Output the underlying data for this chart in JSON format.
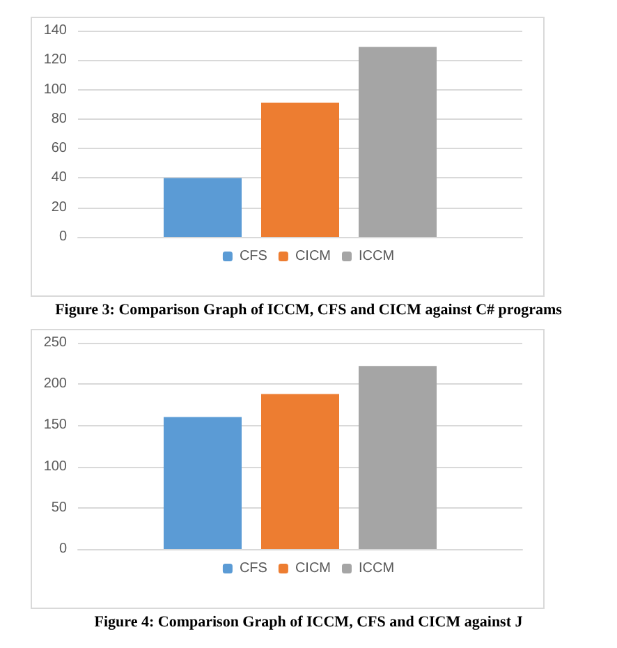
{
  "chart_data": [
    {
      "type": "bar",
      "categories": [
        null
      ],
      "series": [
        {
          "name": "CFS",
          "color": "#5b9bd5",
          "values": [
            40
          ]
        },
        {
          "name": "CICM",
          "color": "#ed7d31",
          "values": [
            91
          ]
        },
        {
          "name": "ICCM",
          "color": "#a5a5a5",
          "values": [
            129
          ]
        }
      ],
      "ylim": [
        0,
        140
      ],
      "yticks": [
        0,
        20,
        40,
        60,
        80,
        100,
        120,
        140
      ],
      "grid": "y",
      "legend": "bottom",
      "annotations": [
        "Figure 3: Comparison Graph of ICCM, CFS and CICM against C# programs"
      ]
    },
    {
      "type": "bar",
      "categories": [
        null
      ],
      "series": [
        {
          "name": "CFS",
          "color": "#5b9bd5",
          "values": [
            160
          ]
        },
        {
          "name": "CICM",
          "color": "#ed7d31",
          "values": [
            188
          ]
        },
        {
          "name": "ICCM",
          "color": "#a5a5a5",
          "values": [
            222
          ]
        }
      ],
      "ylim": [
        0,
        250
      ],
      "yticks": [
        0,
        50,
        100,
        150,
        200,
        250
      ],
      "grid": "y",
      "legend": "bottom",
      "annotations": [
        "Figure 4: Comparison Graph of ICCM, CFS and CICM against J"
      ]
    }
  ]
}
